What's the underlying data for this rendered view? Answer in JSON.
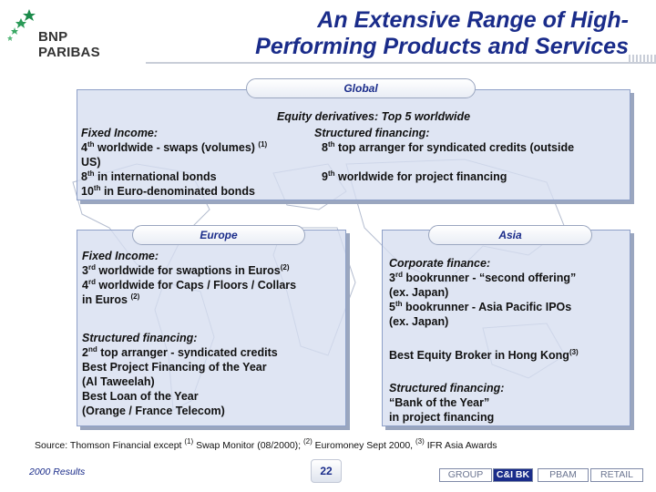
{
  "brand": {
    "name": "BNP PARIBAS",
    "logo_icon": "stars-flight-logo-icon",
    "star_color": "#1b8a4a"
  },
  "title": {
    "line1": "An Extensive Range of High-",
    "line2": "Performing Products and Services",
    "color": "#1a2c8a"
  },
  "global": {
    "tab": "Global",
    "heading": "Equity derivatives: Top 5 worldwide",
    "fixed_income": {
      "label": "Fixed Income:",
      "line1_pre": "4",
      "line1_sup": "th",
      "line1_text": " worldwide -  swaps (volumes) ",
      "line1_note": "(1)",
      "line1_cont": "US)",
      "line2_pre": "8",
      "line2_sup": "th",
      "line2_text": " in international bonds",
      "line3_pre": "10",
      "line3_sup": "th",
      "line3_text": " in Euro-denominated bonds"
    },
    "structured": {
      "label": "Structured financing:",
      "line1_pre": "8",
      "line1_sup": "th",
      "line1_text": " top arranger for syndicated credits (outside",
      "line2_pre": "9",
      "line2_sup": "th",
      "line2_text": " worldwide for project financing"
    }
  },
  "europe": {
    "tab": "Europe",
    "fixed_income": {
      "label": "Fixed Income:",
      "line1_pre": "3",
      "line1_sup": "rd",
      "line1_text": " worldwide for swaptions in Euros",
      "line1_note": "(2)",
      "line2_pre": "4",
      "line2_sup": "rd",
      "line2_text": " worldwide for Caps / Floors / Collars",
      "line3_text": "in Euros ",
      "line3_note": "(2)"
    },
    "structured": {
      "label": "Structured financing:",
      "line1_pre": "2",
      "line1_sup": "nd",
      "line1_text": " top arranger - syndicated credits",
      "line2": "Best Project Financing of the Year",
      "line3": "(Al Taweelah)",
      "line4": "Best Loan of the Year",
      "line5": "(Orange / France Telecom)"
    }
  },
  "asia": {
    "tab": "Asia",
    "corporate": {
      "label": "Corporate finance:",
      "line1_pre": "3",
      "line1_sup": "rd",
      "line1_text": " bookrunner - “second offering”",
      "line2": "(ex. Japan)",
      "line3_pre": "5",
      "line3_sup": "th",
      "line3_text": " bookrunner - Asia Pacific IPOs",
      "line4": "(ex. Japan)"
    },
    "broker": {
      "text": "Best Equity Broker in Hong Kong",
      "note": "(3)"
    },
    "structured": {
      "label": "Structured financing:",
      "line1": "“Bank of the Year”",
      "line2": "in project financing"
    }
  },
  "source": {
    "prefix": "Source: Thomson Financial except ",
    "n1": "(1)",
    "t1": " Swap Monitor (08/2000); ",
    "n2": "(2)",
    "t2": " Euromoney Sept 2000, ",
    "n3": "(3)",
    "t3": " IFR Asia Awards"
  },
  "footer": {
    "left": "2000 Results",
    "page": "22",
    "nav": [
      {
        "label": "GROUP",
        "active": false
      },
      {
        "label": "C&I BK",
        "active": true
      },
      {
        "label": "PBAM",
        "active": false
      },
      {
        "label": "RETAIL",
        "active": false
      }
    ]
  }
}
